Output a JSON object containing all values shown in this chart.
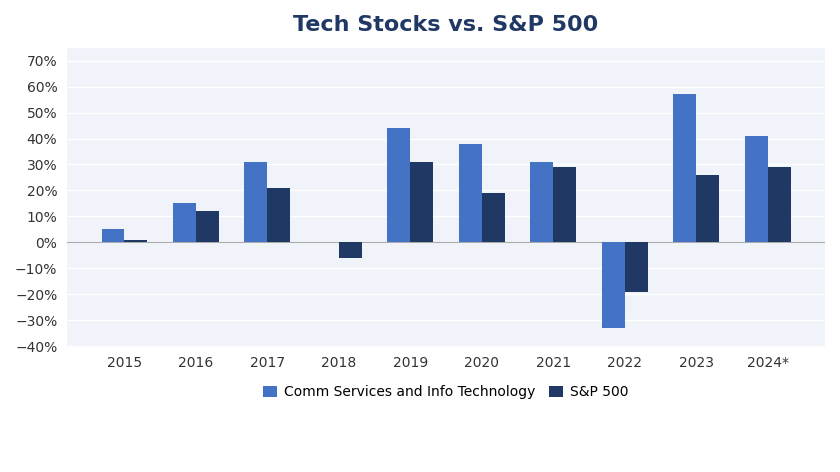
{
  "title": "Tech Stocks vs. S&P 500",
  "years": [
    "2015",
    "2016",
    "2017",
    "2018",
    "2019",
    "2020",
    "2021",
    "2022",
    "2023",
    "2024*"
  ],
  "comm_services": [
    5,
    15,
    31,
    0,
    44,
    38,
    31,
    -33,
    57,
    41
  ],
  "sp500": [
    1,
    12,
    21,
    -6,
    31,
    19,
    29,
    -19,
    26,
    29
  ],
  "comm_color": "#4472C4",
  "sp500_color": "#1F3864",
  "bar_width": 0.32,
  "ylim": [
    -40,
    75
  ],
  "yticks": [
    -40,
    -30,
    -20,
    -10,
    0,
    10,
    20,
    30,
    40,
    50,
    60,
    70
  ],
  "legend_labels": [
    "Comm Services and Info Technology",
    "S&P 500"
  ],
  "background_color": "#FFFFFF",
  "plot_bg_color": "#F0F4FA",
  "grid_color": "#FFFFFF",
  "title_fontsize": 16,
  "tick_fontsize": 10,
  "legend_fontsize": 10,
  "title_color": "#1F3864"
}
